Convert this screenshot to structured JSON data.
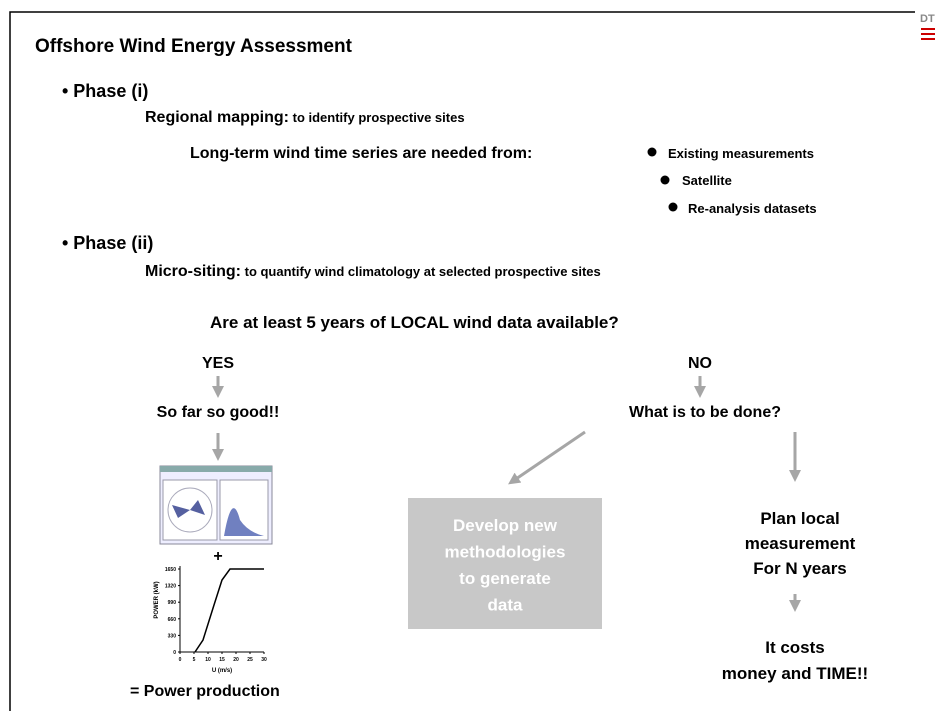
{
  "logo": "DT",
  "title": "Offshore Wind Energy Assessment",
  "phase1": {
    "heading": "• Phase (i)",
    "lead": "Regional mapping:",
    "text": " to identify prospective sites",
    "needs": "Long-term wind time series are needed from:",
    "sources": [
      "Existing measurements",
      "Satellite",
      "Re-analysis datasets"
    ]
  },
  "phase2": {
    "heading": "• Phase (ii)",
    "lead": "Micro-siting:",
    "text": " to quantify wind climatology at selected prospective sites"
  },
  "question": "Are at least 5 years of LOCAL wind data available?",
  "yes": {
    "label": "YES",
    "result": "So far so good!!",
    "plus": "+",
    "outcome": "=  Power production"
  },
  "no": {
    "label": "NO",
    "result": "What is to be done?",
    "option_a": [
      "Develop new",
      "methodologies",
      "to generate",
      "data"
    ],
    "option_b": [
      "Plan  local",
      "measurement",
      "For N years"
    ],
    "cost": [
      "It costs",
      "money and TIME!!"
    ]
  },
  "power_curve": {
    "ylabel": "POWER (kW)",
    "xlabel": "U (m/s)",
    "yticks": [
      0,
      330,
      660,
      990,
      1320,
      1650
    ],
    "xticks": [
      0,
      5,
      10,
      15,
      20,
      25,
      30
    ]
  }
}
